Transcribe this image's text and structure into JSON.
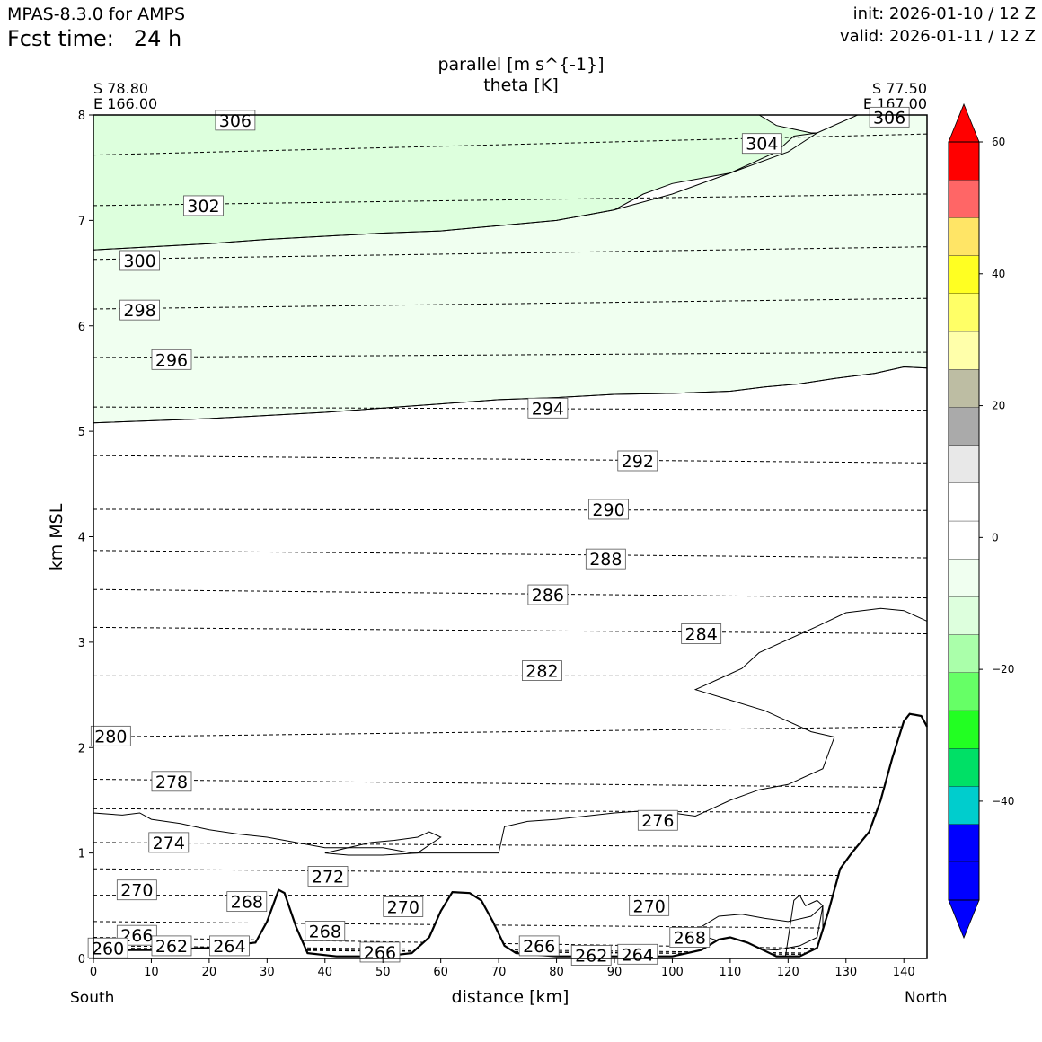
{
  "header": {
    "model": "MPAS-8.3.0 for AMPS",
    "fcst_label": "Fcst time:",
    "fcst_value": "24 h",
    "init": "init: 2026-01-10 / 12 Z",
    "valid": "valid: 2026-01-11 / 12 Z"
  },
  "chart_data": {
    "type": "contour-cross-section",
    "title_line1": "parallel [m s^{-1}]",
    "title_line2": "theta [K]",
    "xlabel": "distance [km]",
    "ylabel": "km MSL",
    "xlim": [
      0,
      144
    ],
    "ylim": [
      0,
      8
    ],
    "x_ticks": [
      0,
      10,
      20,
      30,
      40,
      50,
      60,
      70,
      80,
      90,
      100,
      110,
      120,
      130,
      140
    ],
    "y_ticks": [
      0,
      1,
      2,
      3,
      4,
      5,
      6,
      7,
      8
    ],
    "left_end": {
      "lat": "S 78.80",
      "lon": "E 166.00",
      "direction": "South"
    },
    "right_end": {
      "lat": "S 77.50",
      "lon": "E 167.00",
      "direction": "North"
    },
    "colorbar": {
      "levels": [
        -55,
        -50,
        -45,
        -40,
        -35,
        -30,
        -25,
        -20,
        -15,
        -10,
        -5,
        0,
        5,
        10,
        15,
        20,
        25,
        30,
        35,
        40,
        45,
        50,
        55,
        60
      ],
      "colors": [
        "#0000ff",
        "#0000ff",
        "#00cdcd",
        "#00e066",
        "#22ff22",
        "#66ff66",
        "#aaffaa",
        "#ddffdd",
        "#f0fff0",
        "#ffffff",
        "#ffffff",
        "#e8e8e8",
        "#aaaaaa",
        "#bdbda3",
        "#ffffaa",
        "#ffff66",
        "#ffff22",
        "#ffe566",
        "#ff6666",
        "#ff0000"
      ],
      "extend_min_color": "#0000ff",
      "extend_max_color": "#ff0000",
      "tick_labels": [
        60,
        40,
        20,
        0,
        -20,
        -40
      ]
    },
    "terrain": {
      "x": [
        0,
        10,
        20,
        28,
        30,
        32,
        33,
        35,
        37,
        42,
        50,
        55,
        58,
        60,
        62,
        65,
        67,
        69,
        71,
        73,
        80,
        90,
        100,
        105,
        108,
        110,
        113,
        118,
        122,
        125,
        127,
        129,
        131,
        134,
        136,
        138,
        140,
        141,
        143,
        144
      ],
      "y": [
        0.08,
        0.08,
        0.1,
        0.15,
        0.35,
        0.65,
        0.62,
        0.3,
        0.05,
        0.02,
        0.02,
        0.05,
        0.2,
        0.45,
        0.63,
        0.62,
        0.55,
        0.35,
        0.12,
        0.05,
        0.02,
        0.02,
        0.02,
        0.08,
        0.18,
        0.2,
        0.15,
        0.02,
        0.02,
        0.1,
        0.45,
        0.85,
        1.0,
        1.2,
        1.5,
        1.9,
        2.25,
        2.32,
        2.3,
        2.2
      ]
    },
    "theta_contours": [
      {
        "value": 306,
        "x": [
          0,
          144
        ],
        "y": [
          8.0,
          8.0
        ]
      },
      {
        "value": 304,
        "x": [
          0,
          144
        ],
        "y": [
          7.62,
          7.82
        ]
      },
      {
        "value": 302,
        "x": [
          0,
          144
        ],
        "y": [
          7.14,
          7.25
        ]
      },
      {
        "value": 300,
        "x": [
          0,
          144
        ],
        "y": [
          6.63,
          6.75
        ]
      },
      {
        "value": 298,
        "x": [
          0,
          144
        ],
        "y": [
          6.16,
          6.26
        ]
      },
      {
        "value": 296,
        "x": [
          0,
          144
        ],
        "y": [
          5.7,
          5.75
        ]
      },
      {
        "value": 294,
        "x": [
          0,
          144
        ],
        "y": [
          5.23,
          5.2
        ]
      },
      {
        "value": 292,
        "x": [
          0,
          144
        ],
        "y": [
          4.77,
          4.7
        ]
      },
      {
        "value": 290,
        "x": [
          0,
          144
        ],
        "y": [
          4.26,
          4.25
        ]
      },
      {
        "value": 288,
        "x": [
          0,
          144
        ],
        "y": [
          3.87,
          3.8
        ]
      },
      {
        "value": 286,
        "x": [
          0,
          144
        ],
        "y": [
          3.5,
          3.42
        ]
      },
      {
        "value": 284,
        "x": [
          0,
          144
        ],
        "y": [
          3.14,
          3.08
        ]
      },
      {
        "value": 282,
        "x": [
          0,
          144
        ],
        "y": [
          2.68,
          2.68
        ]
      },
      {
        "value": 280,
        "x": [
          0,
          144
        ],
        "y": [
          2.1,
          2.2
        ]
      },
      {
        "value": 278,
        "x": [
          0,
          144
        ],
        "y": [
          1.7,
          1.62
        ]
      },
      {
        "value": 276,
        "x": [
          0,
          144
        ],
        "y": [
          1.42,
          1.38
        ]
      },
      {
        "value": 274,
        "x": [
          0,
          144
        ],
        "y": [
          1.1,
          1.05
        ]
      },
      {
        "value": 272,
        "x": [
          0,
          144
        ],
        "y": [
          0.85,
          0.78
        ]
      },
      {
        "value": 270,
        "x": [
          0,
          144
        ],
        "y": [
          0.6,
          0.6
        ]
      },
      {
        "value": 268,
        "x": [
          0,
          144
        ],
        "y": [
          0.35,
          0.28
        ]
      },
      {
        "value": 266,
        "x": [
          0,
          144
        ],
        "y": [
          0.2,
          0.08
        ]
      },
      {
        "value": 264,
        "x": [
          0,
          144
        ],
        "y": [
          0.12,
          0.04
        ]
      },
      {
        "value": 262,
        "x": [
          0,
          144
        ],
        "y": [
          0.1,
          0.03
        ]
      },
      {
        "value": 260,
        "x": [
          0,
          144
        ],
        "y": [
          0.09,
          0.03
        ]
      }
    ],
    "theta_labels": [
      {
        "text": "306",
        "x": 24.5,
        "y": 7.95
      },
      {
        "text": "306",
        "x": 137.5,
        "y": 7.98
      },
      {
        "text": "304",
        "x": 115.5,
        "y": 7.73
      },
      {
        "text": "302",
        "x": 19,
        "y": 7.14
      },
      {
        "text": "300",
        "x": 8,
        "y": 6.62
      },
      {
        "text": "298",
        "x": 8,
        "y": 6.15
      },
      {
        "text": "296",
        "x": 13.5,
        "y": 5.68
      },
      {
        "text": "294",
        "x": 78.5,
        "y": 5.22
      },
      {
        "text": "292",
        "x": 94,
        "y": 4.72
      },
      {
        "text": "290",
        "x": 89,
        "y": 4.26
      },
      {
        "text": "288",
        "x": 88.5,
        "y": 3.79
      },
      {
        "text": "286",
        "x": 78.5,
        "y": 3.45
      },
      {
        "text": "284",
        "x": 105,
        "y": 3.08
      },
      {
        "text": "282",
        "x": 77.5,
        "y": 2.73
      },
      {
        "text": "280",
        "x": 3,
        "y": 2.11
      },
      {
        "text": "278",
        "x": 13.5,
        "y": 1.68
      },
      {
        "text": "276",
        "x": 97.5,
        "y": 1.31
      },
      {
        "text": "274",
        "x": 13,
        "y": 1.1
      },
      {
        "text": "272",
        "x": 40.5,
        "y": 0.78
      },
      {
        "text": "270",
        "x": 7.5,
        "y": 0.65
      },
      {
        "text": "270",
        "x": 53.5,
        "y": 0.49
      },
      {
        "text": "270",
        "x": 96,
        "y": 0.5
      },
      {
        "text": "268",
        "x": 26.5,
        "y": 0.54
      },
      {
        "text": "268",
        "x": 40,
        "y": 0.26
      },
      {
        "text": "268",
        "x": 103,
        "y": 0.2
      },
      {
        "text": "266",
        "x": 7.5,
        "y": 0.22
      },
      {
        "text": "266",
        "x": 49.5,
        "y": 0.06
      },
      {
        "text": "266",
        "x": 77,
        "y": 0.12
      },
      {
        "text": "264",
        "x": 23.5,
        "y": 0.12
      },
      {
        "text": "264",
        "x": 94,
        "y": 0.04
      },
      {
        "text": "262",
        "x": 13.5,
        "y": 0.12
      },
      {
        "text": "262",
        "x": 86,
        "y": 0.03
      },
      {
        "text": "260",
        "x": 2.5,
        "y": 0.1
      }
    ],
    "wind_regions": [
      {
        "level": "-20 to -15",
        "x": [
          0,
          10,
          20,
          30,
          40,
          50,
          60,
          70,
          80,
          90,
          100,
          110,
          115,
          118,
          124,
          125,
          120,
          110,
          100,
          95,
          90,
          80,
          70,
          60,
          50,
          40,
          30,
          20,
          10,
          0
        ],
        "y": [
          8,
          8,
          8,
          8,
          8,
          8,
          8,
          8,
          8,
          8,
          8,
          8,
          8,
          7.9,
          7.83,
          7.83,
          7.65,
          7.45,
          7.35,
          7.25,
          7.1,
          7.0,
          6.95,
          6.9,
          6.88,
          6.85,
          6.82,
          6.78,
          6.75,
          6.72
        ]
      },
      {
        "level": "-15 to -10",
        "x": [
          0,
          10,
          20,
          30,
          40,
          50,
          60,
          70,
          80,
          90,
          100,
          110,
          118,
          121,
          125,
          132,
          140,
          144,
          144,
          140,
          135,
          128,
          122,
          116,
          110,
          100,
          90,
          80,
          70,
          60,
          50,
          40,
          30,
          20,
          10,
          0
        ],
        "y": [
          6.72,
          6.75,
          6.78,
          6.82,
          6.85,
          6.88,
          6.9,
          6.95,
          7.0,
          7.1,
          7.25,
          7.45,
          7.65,
          7.8,
          7.83,
          8,
          8,
          8,
          5.6,
          5.61,
          5.55,
          5.5,
          5.45,
          5.42,
          5.38,
          5.36,
          5.35,
          5.32,
          5.3,
          5.26,
          5.22,
          5.18,
          5.15,
          5.12,
          5.1,
          5.08
        ]
      },
      {
        "level": "-10 to -5",
        "x": [
          0,
          10,
          20,
          30,
          40,
          50,
          60,
          70,
          80,
          90,
          100,
          110,
          116,
          122,
          128,
          135,
          140,
          144,
          144,
          140,
          136,
          130,
          125,
          115,
          112,
          108,
          104,
          110,
          116,
          120,
          124,
          128,
          126,
          120,
          115,
          110,
          106,
          104,
          100,
          95,
          90,
          80,
          75,
          71,
          70,
          68,
          66,
          60,
          55,
          50,
          45,
          40,
          35,
          30,
          25,
          20,
          15,
          10,
          8,
          5,
          0
        ],
        "y": [
          5.08,
          5.1,
          5.12,
          5.15,
          5.18,
          5.22,
          5.26,
          5.3,
          5.32,
          5.35,
          5.36,
          5.38,
          5.42,
          5.45,
          5.5,
          5.55,
          5.61,
          5.6,
          3.2,
          3.3,
          3.32,
          3.28,
          3.15,
          2.9,
          2.75,
          2.65,
          2.55,
          2.45,
          2.35,
          2.25,
          2.15,
          2.1,
          1.8,
          1.65,
          1.6,
          1.5,
          1.4,
          1.35,
          1.38,
          1.4,
          1.38,
          1.32,
          1.3,
          1.25,
          1.0,
          1.0,
          1.0,
          1.0,
          1.0,
          1.05,
          1.05,
          1.05,
          1.1,
          1.15,
          1.18,
          1.22,
          1.28,
          1.32,
          1.38,
          1.36,
          1.38
        ]
      },
      {
        "level": "-10 to -5",
        "x": [
          40,
          44,
          48,
          52,
          56,
          58,
          60,
          56,
          50,
          44,
          40
        ],
        "y": [
          1.0,
          1.05,
          1.1,
          1.12,
          1.15,
          1.2,
          1.15,
          1.0,
          0.98,
          0.98,
          1.0
        ]
      },
      {
        "level": "-10 to -5",
        "x": [
          105,
          108,
          112,
          116,
          120,
          124,
          126,
          125,
          122,
          118,
          112,
          106
        ],
        "y": [
          0.3,
          0.4,
          0.42,
          0.38,
          0.35,
          0.4,
          0.5,
          0.2,
          0.12,
          0.08,
          0.1,
          0.2
        ]
      },
      {
        "level": "-10 to -5",
        "x": [
          119.5,
          121,
          122,
          123,
          125,
          126,
          126,
          124,
          122,
          120,
          119.5
        ],
        "y": [
          0.0,
          0.55,
          0.6,
          0.5,
          0.55,
          0.5,
          0.0,
          0.0,
          0.0,
          0.0,
          0.0
        ]
      }
    ]
  }
}
